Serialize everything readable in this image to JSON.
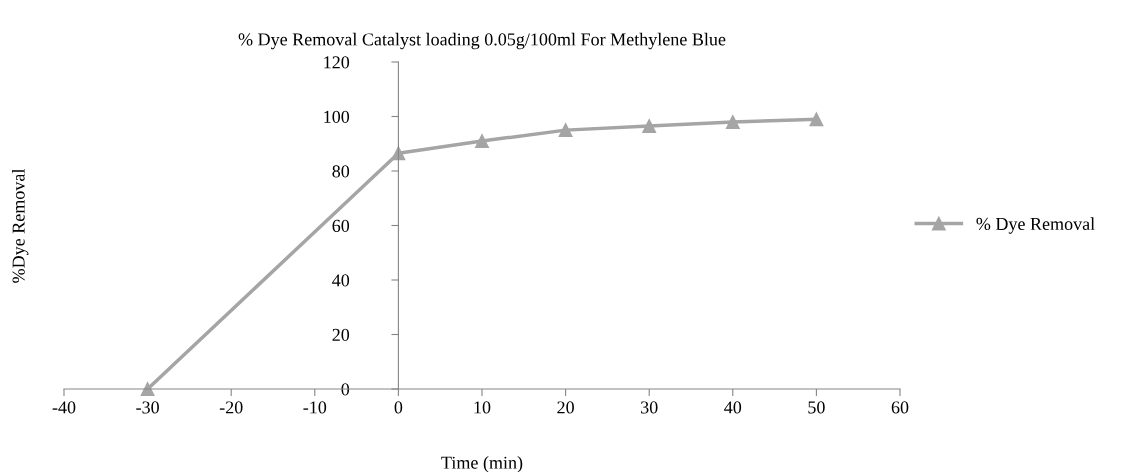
{
  "chart_data": {
    "type": "line",
    "title": "% Dye Removal Catalyst loading 0.05g/100ml For Methylene Blue",
    "xlabel": "Time (min)",
    "ylabel": "%Dye Removal",
    "x": [
      -30,
      0,
      10,
      20,
      30,
      40,
      50
    ],
    "series": [
      {
        "name": "% Dye Removal",
        "color": "#a5a5a5",
        "values": [
          0,
          86.5,
          91,
          95,
          96.5,
          98,
          99
        ]
      }
    ],
    "xlim": [
      -40,
      60
    ],
    "xticks": [
      -40,
      -30,
      -20,
      -10,
      0,
      10,
      20,
      30,
      40,
      50,
      60
    ],
    "ylim": [
      0,
      120
    ],
    "yticks": [
      0,
      20,
      40,
      60,
      80,
      100,
      120
    ],
    "marker": "triangle",
    "line_style": "solid",
    "legend": "right"
  }
}
